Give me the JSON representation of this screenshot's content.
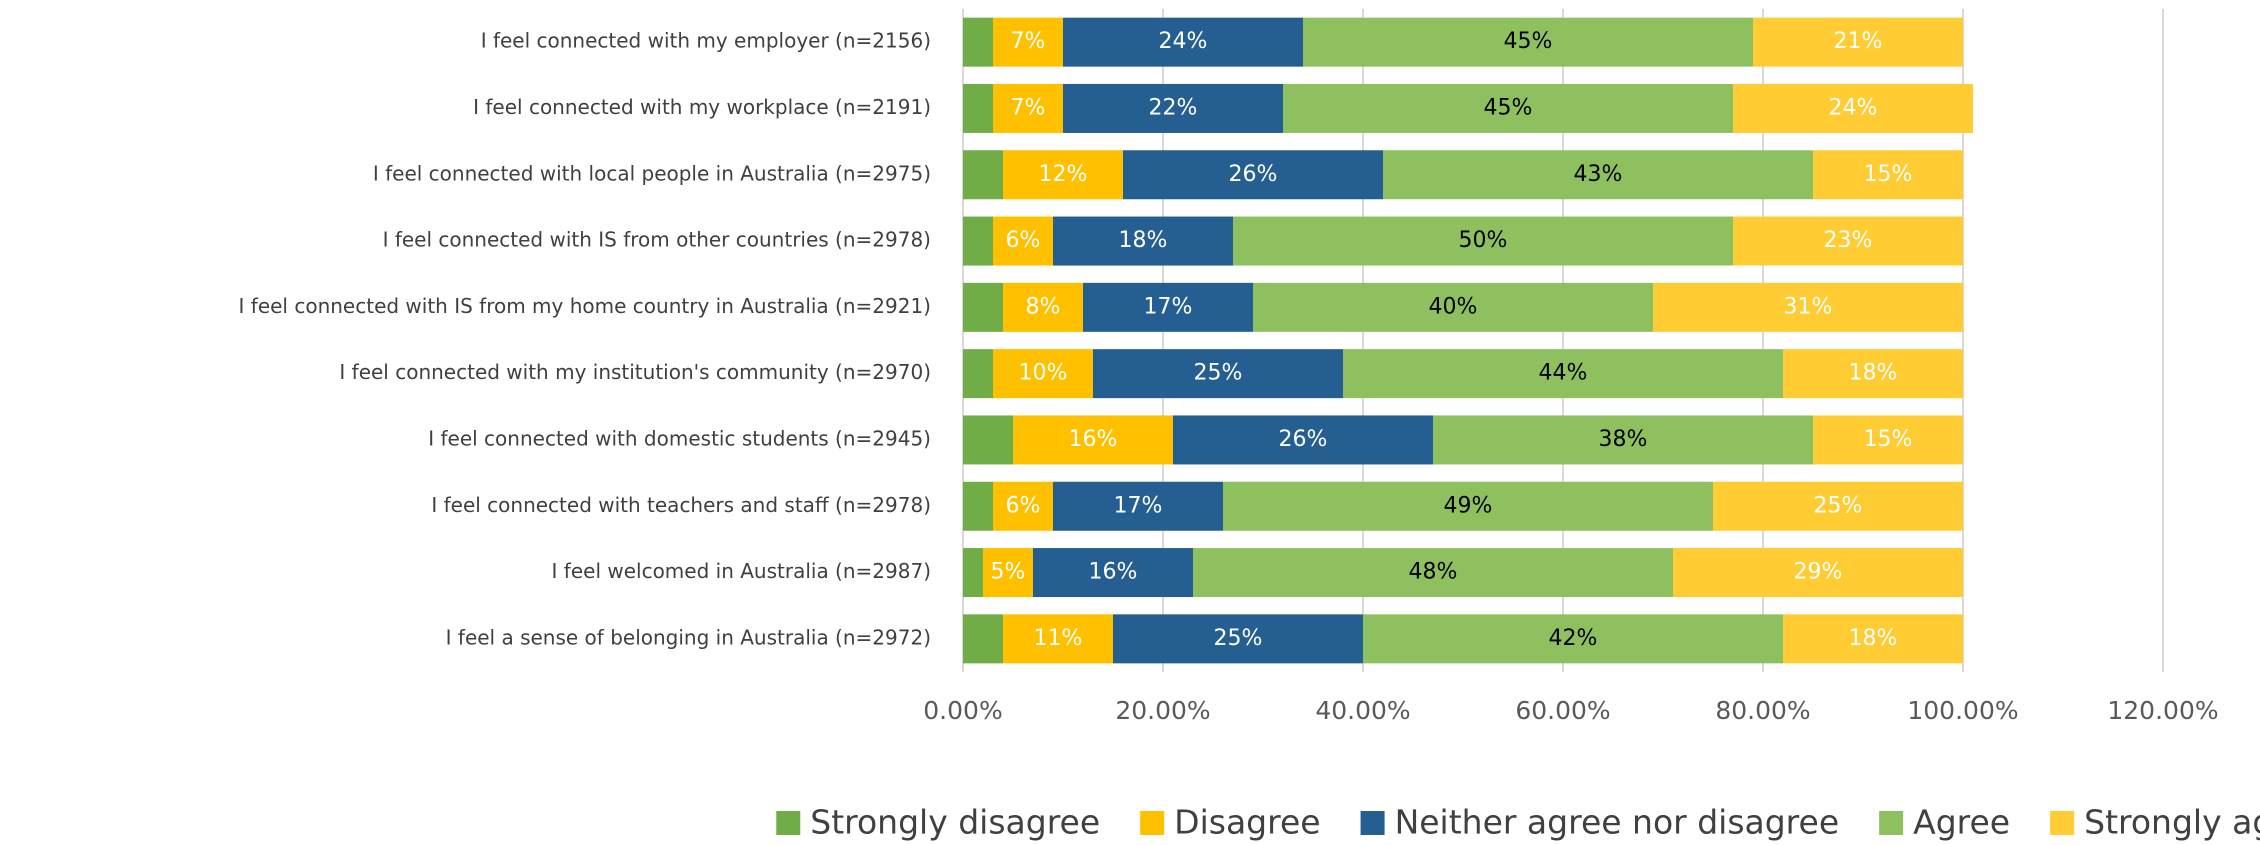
{
  "chart_data": {
    "type": "stacked-bar-horizontal",
    "categories": [
      "I feel connected with my employer (n=2156)",
      "I feel connected with my workplace (n=2191)",
      "I feel connected with local people in Australia (n=2975)",
      "I feel connected with IS from other countries (n=2978)",
      "I feel connected with IS from my home country in Australia (n=2921)",
      "I feel connected with my institution's community (n=2970)",
      "I feel connected with domestic students (n=2945)",
      "I feel connected with teachers and staff (n=2978)",
      "I feel welcomed in Australia (n=2987)",
      "I feel a sense of belonging in Australia (n=2972)"
    ],
    "series": [
      {
        "name": "Strongly disagree",
        "color": "#70ad47",
        "values": [
          3,
          3,
          4,
          3,
          4,
          3,
          5,
          3,
          2,
          4
        ]
      },
      {
        "name": "Disagree",
        "color": "#ffc000",
        "label_color": "#ffffff",
        "values": [
          7,
          7,
          12,
          6,
          8,
          10,
          16,
          6,
          5,
          11
        ],
        "value_labels": [
          "7%",
          "7%",
          "12%",
          "6%",
          "8%",
          "10%",
          "16%",
          "6%",
          "5%",
          "11%"
        ]
      },
      {
        "name": "Neither agree nor disagree",
        "color": "#255e91",
        "label_color": "#ffffff",
        "values": [
          24,
          22,
          26,
          18,
          17,
          25,
          26,
          17,
          16,
          25
        ],
        "value_labels": [
          "24%",
          "22%",
          "26%",
          "18%",
          "17%",
          "25%",
          "26%",
          "17%",
          "16%",
          "25%"
        ]
      },
      {
        "name": "Agree",
        "color": "#8fc060",
        "label_color": "#000000",
        "values": [
          45,
          45,
          43,
          50,
          40,
          44,
          38,
          49,
          48,
          42
        ],
        "value_labels": [
          "45%",
          "45%",
          "43%",
          "50%",
          "40%",
          "44%",
          "38%",
          "49%",
          "48%",
          "42%"
        ]
      },
      {
        "name": "Strongly agree",
        "color": "#ffcc33",
        "label_color": "#ffffff",
        "values": [
          21,
          24,
          15,
          23,
          31,
          18,
          15,
          25,
          29,
          18
        ],
        "value_labels": [
          "21%",
          "24%",
          "15%",
          "23%",
          "31%",
          "18%",
          "15%",
          "25%",
          "29%",
          "18%"
        ]
      }
    ],
    "xlim": [
      0,
      120
    ],
    "xticks": [
      {
        "value": 0,
        "label": "0.00%"
      },
      {
        "value": 20,
        "label": "20.00%"
      },
      {
        "value": 40,
        "label": "40.00%"
      },
      {
        "value": 60,
        "label": "60.00%"
      },
      {
        "value": 80,
        "label": "80.00%"
      },
      {
        "value": 100,
        "label": "100.00%"
      },
      {
        "value": 120,
        "label": "120.00%"
      }
    ],
    "grid": true,
    "legend": "bottom"
  }
}
